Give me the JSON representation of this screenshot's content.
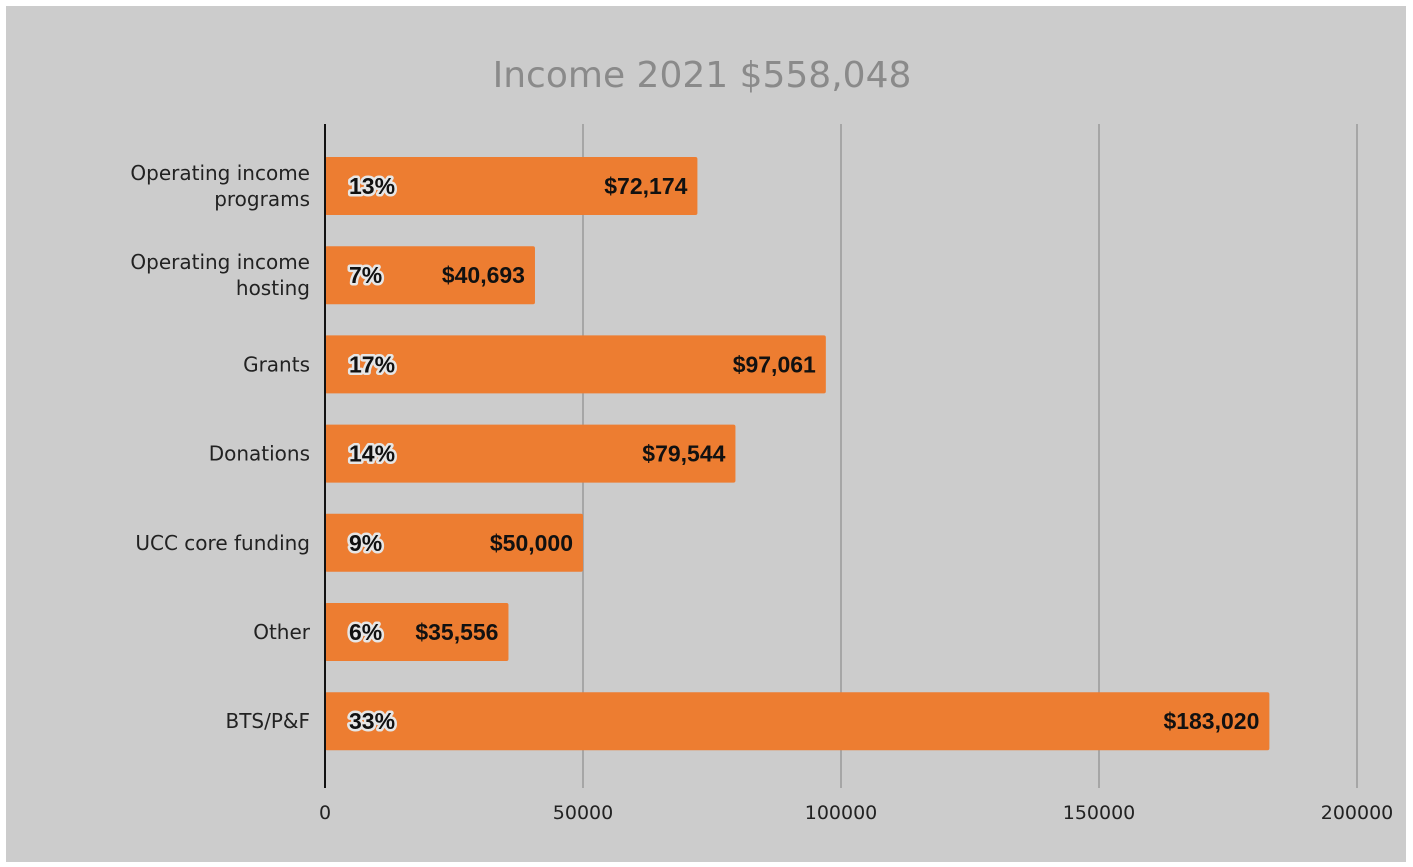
{
  "chart_data": {
    "type": "bar",
    "orientation": "horizontal",
    "title": "Income 2021 $558,048",
    "categories": [
      "Operating income programs",
      "Operating income hosting",
      "Grants",
      "Donations",
      "UCC core funding",
      "Other",
      "BTS/P&F"
    ],
    "category_lines": [
      [
        "Operating income",
        "programs"
      ],
      [
        "Operating income",
        "hosting"
      ],
      [
        "Grants"
      ],
      [
        "Donations"
      ],
      [
        "UCC core funding"
      ],
      [
        "Other"
      ],
      [
        "BTS/P&F"
      ]
    ],
    "values": [
      72174,
      40693,
      97061,
      79544,
      50000,
      35556,
      183020
    ],
    "value_labels": [
      "$72,174",
      "$40,693",
      "$97,061",
      "$79,544",
      "$50,000",
      "$35,556",
      "$183,020"
    ],
    "percent_labels": [
      "13%",
      "7%",
      "17%",
      "14%",
      "9%",
      "6%",
      "33%"
    ],
    "xlim": [
      0,
      200000
    ],
    "xticks": [
      0,
      50000,
      100000,
      150000,
      200000
    ],
    "xtick_labels": [
      "0",
      "50000",
      "100000",
      "150000",
      "200000"
    ],
    "grid": "vertical",
    "legend": "none",
    "colors": {
      "bar": "#ed7d31",
      "background": "#cccccc",
      "grid": "#9a9a9a",
      "axis": "#111111",
      "title": "#8a8a8a"
    }
  }
}
